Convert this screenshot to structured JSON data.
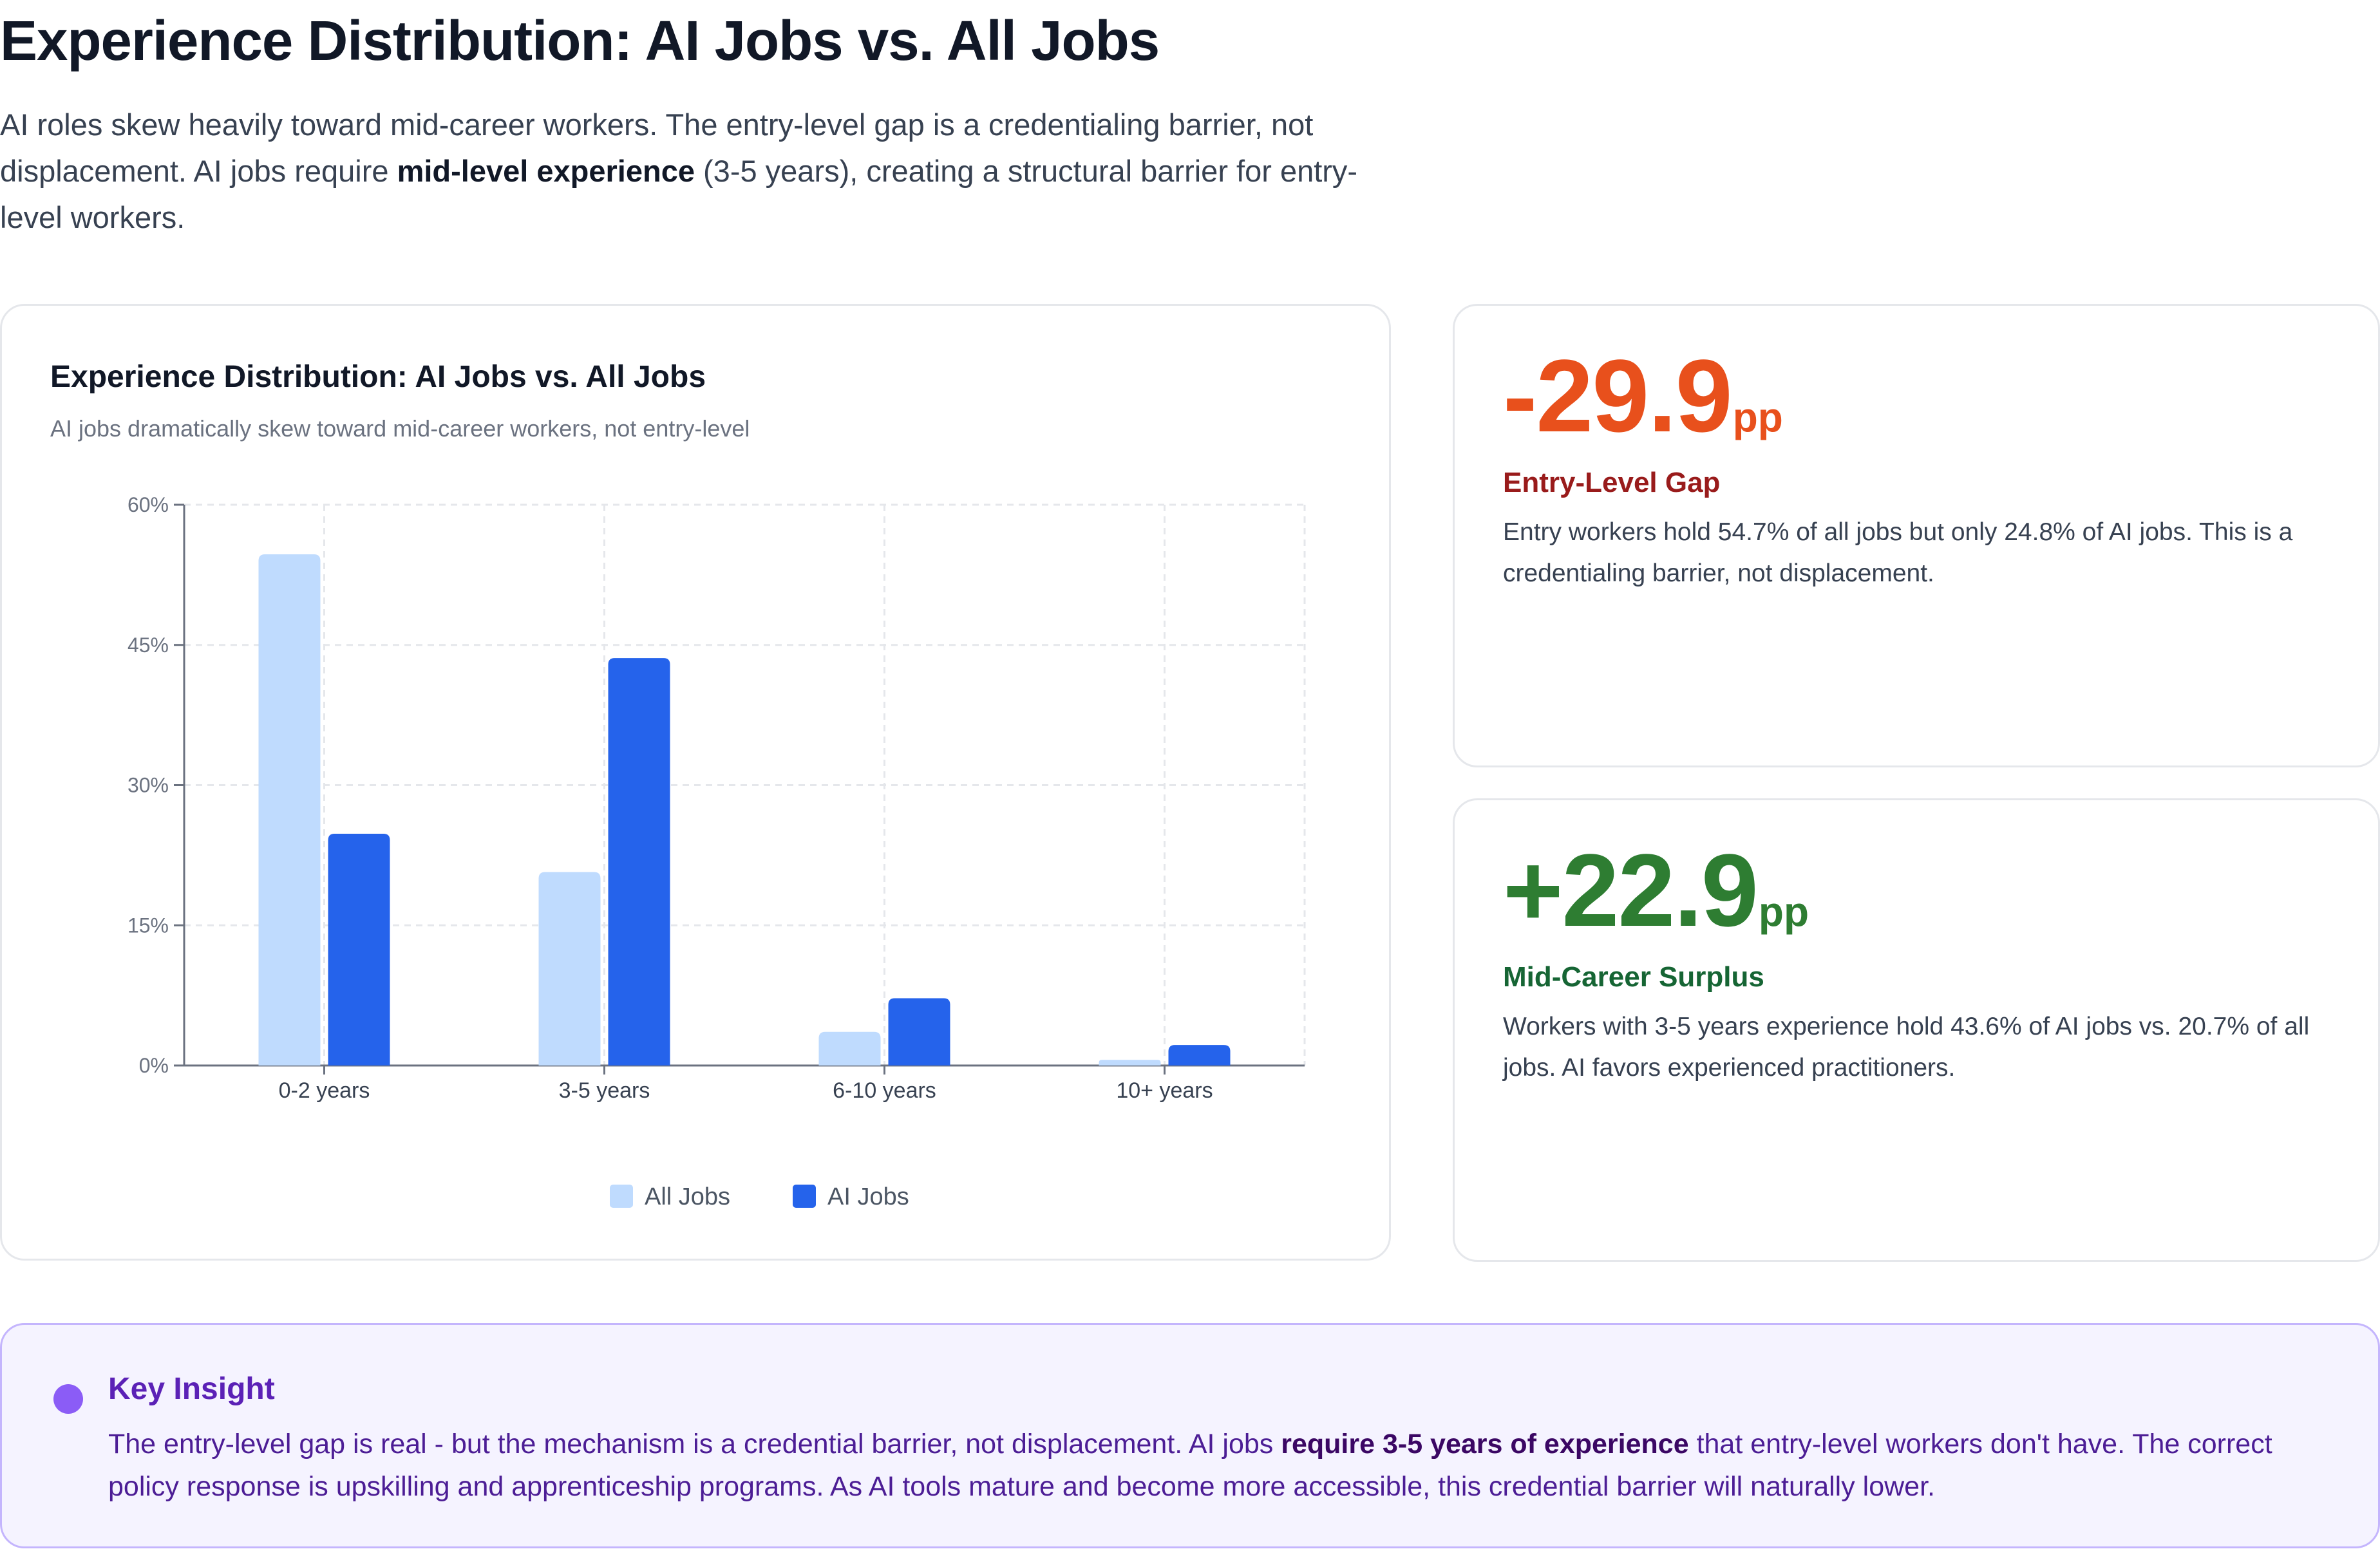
{
  "page": {
    "title": "Experience Distribution: AI Jobs vs. All Jobs",
    "intro_1": "AI roles skew heavily toward mid-career workers. The entry-level gap is a credentialing barrier, not displacement. AI jobs require ",
    "intro_bold": "mid-level experience",
    "intro_2": " (3-5 years), creating a structural barrier for entry-level workers."
  },
  "chart_data": {
    "type": "bar",
    "title": "Experience Distribution: AI Jobs vs. All Jobs",
    "subtitle": "AI jobs dramatically skew toward mid-career workers, not entry-level",
    "categories": [
      "0-2 years",
      "3-5 years",
      "6-10 years",
      "10+ years"
    ],
    "series": [
      {
        "name": "All Jobs",
        "color": "#bfdbfe",
        "values": [
          54.7,
          20.7,
          3.6,
          0.6
        ]
      },
      {
        "name": "AI Jobs",
        "color": "#2563eb",
        "values": [
          24.8,
          43.6,
          7.2,
          2.2
        ]
      }
    ],
    "ylim": [
      0,
      60
    ],
    "yticks": [
      0,
      15,
      30,
      45,
      60
    ],
    "ytick_labels": [
      "0%",
      "15%",
      "30%",
      "45%",
      "60%"
    ],
    "grid": true,
    "legend": "bottom-center"
  },
  "metrics": [
    {
      "value": "-29.9",
      "unit": "pp",
      "label": "Entry-Level Gap",
      "description": "Entry workers hold 54.7% of all jobs but only 24.8% of AI jobs. This is a credentialing barrier, not displacement.",
      "value_color": "#e8501c",
      "label_color": "#991b1b"
    },
    {
      "value": "+22.9",
      "unit": "pp",
      "label": "Mid-Career Surplus",
      "description": "Workers with 3-5 years experience hold 43.6% of AI jobs vs. 20.7% of all jobs. AI favors experienced practitioners.",
      "value_color": "#2e7d32",
      "label_color": "#166534"
    }
  ],
  "insight": {
    "title": "Key Insight",
    "text_1": "The entry-level gap is real - but the mechanism is a credential barrier, not displacement. AI jobs ",
    "text_bold": "require 3-5 years of experience",
    "text_2": " that entry-level workers don't have. The correct policy response is upskilling and apprenticeship programs. As AI tools mature and become more accessible, this credential barrier will naturally lower."
  }
}
